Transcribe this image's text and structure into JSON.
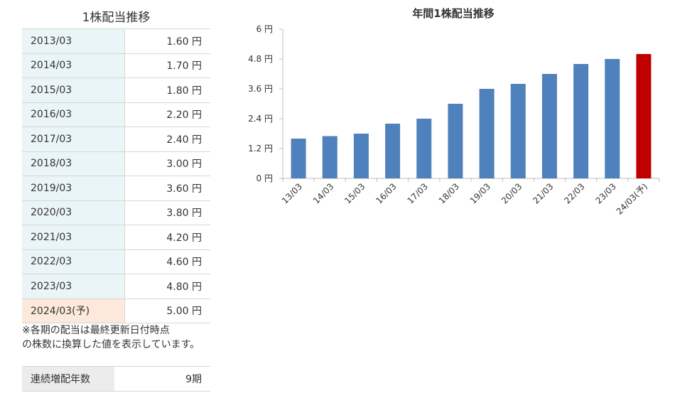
{
  "table": {
    "title": "1株配当推移",
    "rows": [
      {
        "period": "2013/03",
        "value": "1.60 円"
      },
      {
        "period": "2014/03",
        "value": "1.70 円"
      },
      {
        "period": "2015/03",
        "value": "1.80 円"
      },
      {
        "period": "2016/03",
        "value": "2.20 円"
      },
      {
        "period": "2017/03",
        "value": "2.40 円"
      },
      {
        "period": "2018/03",
        "value": "3.00 円"
      },
      {
        "period": "2019/03",
        "value": "3.60 円"
      },
      {
        "period": "2020/03",
        "value": "3.80 円"
      },
      {
        "period": "2021/03",
        "value": "4.20 円"
      },
      {
        "period": "2022/03",
        "value": "4.60 円"
      },
      {
        "period": "2023/03",
        "value": "4.80 円"
      },
      {
        "period": "2024/03(予)",
        "value": "5.00 円"
      }
    ],
    "note_line1": "※各期の配当は最終更新日付時点",
    "note_line2": "の株数に換算した値を表示しています。",
    "streak_label": "連続増配年数",
    "streak_value": "9期"
  },
  "colors": {
    "bar": "#4f81bd",
    "forecast": "#c00000"
  },
  "chart_data": {
    "type": "bar",
    "title": "年間1株配当推移",
    "categories": [
      "13/03",
      "14/03",
      "15/03",
      "16/03",
      "17/03",
      "18/03",
      "19/03",
      "20/03",
      "21/03",
      "22/03",
      "23/03",
      "24/03(予)"
    ],
    "values": [
      1.6,
      1.7,
      1.8,
      2.2,
      2.4,
      3.0,
      3.6,
      3.8,
      4.2,
      4.6,
      4.8,
      5.0
    ],
    "forecast_index": 11,
    "ylim": [
      0,
      6
    ],
    "yticks": [
      0,
      1.2,
      2.4,
      3.6,
      4.8,
      6
    ],
    "ytick_labels": [
      "0 円",
      "1.2 円",
      "2.4 円",
      "3.6 円",
      "4.8 円",
      "6 円"
    ],
    "grid": false,
    "xlabel": "",
    "ylabel": ""
  }
}
